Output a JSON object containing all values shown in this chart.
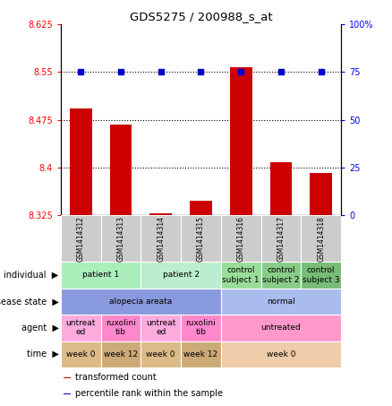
{
  "title": "GDS5275 / 200988_s_at",
  "samples": [
    "GSM1414312",
    "GSM1414313",
    "GSM1414314",
    "GSM1414315",
    "GSM1414316",
    "GSM1414317",
    "GSM1414318"
  ],
  "bar_values": [
    8.493,
    8.468,
    8.328,
    8.348,
    8.557,
    8.408,
    8.392
  ],
  "dot_values": [
    75,
    75,
    75,
    75,
    75,
    75,
    75
  ],
  "ylim_left": [
    8.325,
    8.625
  ],
  "ylim_right": [
    0,
    100
  ],
  "yticks_left": [
    8.325,
    8.4,
    8.475,
    8.55,
    8.625
  ],
  "yticks_right": [
    0,
    25,
    50,
    75,
    100
  ],
  "bar_color": "#CC0000",
  "dot_color": "#0000CC",
  "dotted_line_y": [
    8.4,
    8.475,
    8.55
  ],
  "sample_box_color": "#CCCCCC",
  "annotation_rows": [
    {
      "label": "individual",
      "cells": [
        {
          "text": "patient 1",
          "span": 2,
          "color": "#AAEEBB"
        },
        {
          "text": "patient 2",
          "span": 2,
          "color": "#BBEECC"
        },
        {
          "text": "control\nsubject 1",
          "span": 1,
          "color": "#99DD99"
        },
        {
          "text": "control\nsubject 2",
          "span": 1,
          "color": "#88CC88"
        },
        {
          "text": "control\nsubject 3",
          "span": 1,
          "color": "#77BB77"
        }
      ]
    },
    {
      "label": "disease state",
      "cells": [
        {
          "text": "alopecia areata",
          "span": 4,
          "color": "#8899DD"
        },
        {
          "text": "normal",
          "span": 3,
          "color": "#AABBEE"
        }
      ]
    },
    {
      "label": "agent",
      "cells": [
        {
          "text": "untreat\ned",
          "span": 1,
          "color": "#FFAADD"
        },
        {
          "text": "ruxolini\ntib",
          "span": 1,
          "color": "#FF88CC"
        },
        {
          "text": "untreat\ned",
          "span": 1,
          "color": "#FFAADD"
        },
        {
          "text": "ruxolini\ntib",
          "span": 1,
          "color": "#FF88CC"
        },
        {
          "text": "untreated",
          "span": 3,
          "color": "#FF99CC"
        }
      ]
    },
    {
      "label": "time",
      "cells": [
        {
          "text": "week 0",
          "span": 1,
          "color": "#DDBB88"
        },
        {
          "text": "week 12",
          "span": 1,
          "color": "#CCAA77"
        },
        {
          "text": "week 0",
          "span": 1,
          "color": "#DDBB88"
        },
        {
          "text": "week 12",
          "span": 1,
          "color": "#CCAA77"
        },
        {
          "text": "week 0",
          "span": 3,
          "color": "#EECCAA"
        }
      ]
    }
  ],
  "legend": [
    {
      "label": "transformed count",
      "color": "#CC0000"
    },
    {
      "label": "percentile rank within the sample",
      "color": "#0000CC"
    }
  ]
}
